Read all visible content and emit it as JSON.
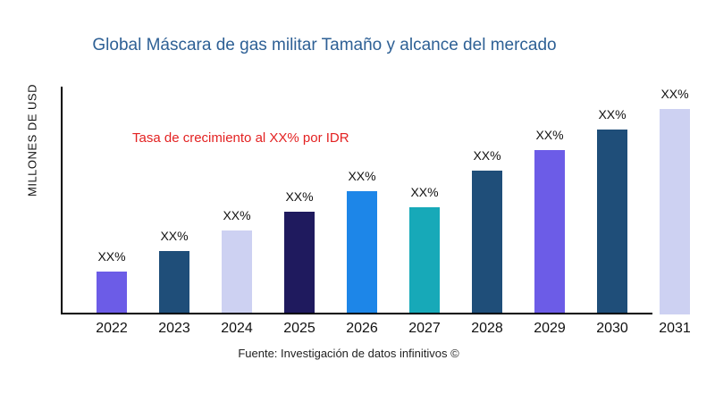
{
  "chart_data": {
    "type": "bar",
    "title": "Global Máscara de gas militar Tamaño y alcance del mercado",
    "ylabel": "MILLONES DE USD",
    "xlabel": "",
    "annotation": "Tasa de crecimiento al XX% por IDR",
    "source": "Fuente: Investigación de datos infinitivos ©",
    "categories": [
      "2022",
      "2023",
      "2024",
      "2025",
      "2026",
      "2027",
      "2028",
      "2029",
      "2030",
      "2031"
    ],
    "bar_labels": [
      "XX%",
      "XX%",
      "XX%",
      "XX%",
      "XX%",
      "XX%",
      "XX%",
      "XX%",
      "XX%",
      "XX%"
    ],
    "values": [
      21,
      31,
      41,
      50,
      60,
      52,
      70,
      80,
      90,
      100
    ],
    "values_unit": "relative_height_percent_of_max (numeric values masked as XX% in chart)",
    "bar_colors": [
      "#6c5ce7",
      "#1f4e79",
      "#cdd1f2",
      "#1f1a5e",
      "#1d86e8",
      "#17a9b8",
      "#1f4e79",
      "#6c5ce7",
      "#1f4e79",
      "#cdd1f2"
    ],
    "colors": {
      "title": "#2e6095",
      "annotation": "#e32222",
      "axis": "#000000",
      "text": "#111111"
    },
    "layout": {
      "grid": false,
      "legend": "none",
      "x_axis_line_stops_before_last_bar": true
    }
  }
}
